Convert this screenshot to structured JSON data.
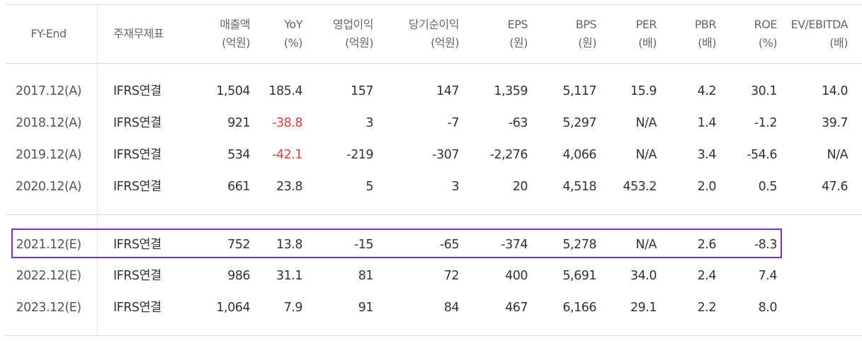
{
  "headers": [
    {
      "l1": "FY-End",
      "l2": ""
    },
    {
      "l1": "주재무제표",
      "l2": ""
    },
    {
      "l1": "매출액",
      "l2": "(억원)"
    },
    {
      "l1": "YoY",
      "l2": "(%)"
    },
    {
      "l1": "영업이익",
      "l2": "(억원)"
    },
    {
      "l1": "당기순이익",
      "l2": "(억원)"
    },
    {
      "l1": "EPS",
      "l2": "(원)"
    },
    {
      "l1": "BPS",
      "l2": "(원)"
    },
    {
      "l1": "PER",
      "l2": "(배)"
    },
    {
      "l1": "PBR",
      "l2": "(배)"
    },
    {
      "l1": "ROE",
      "l2": "(%)"
    },
    {
      "l1": "EV/EBITDA",
      "l2": "(배)"
    }
  ],
  "rows": [
    {
      "fy": "2017.12(A)",
      "std": "IFRS연결",
      "v": [
        "1,504",
        "185.4",
        "157",
        "147",
        "1,359",
        "5,117",
        "15.9",
        "4.2",
        "30.1",
        "14.0"
      ]
    },
    {
      "fy": "2018.12(A)",
      "std": "IFRS연결",
      "v": [
        "921",
        "-38.8",
        "3",
        "-7",
        "-63",
        "5,297",
        "N/A",
        "1.4",
        "-1.2",
        "39.7"
      ]
    },
    {
      "fy": "2019.12(A)",
      "std": "IFRS연결",
      "v": [
        "534",
        "-42.1",
        "-219",
        "-307",
        "-2,276",
        "4,066",
        "N/A",
        "3.4",
        "-54.6",
        "N/A"
      ]
    },
    {
      "fy": "2020.12(A)",
      "std": "IFRS연결",
      "v": [
        "661",
        "23.8",
        "5",
        "3",
        "20",
        "4,518",
        "453.2",
        "2.0",
        "0.5",
        "47.6"
      ]
    },
    {
      "fy": "2021.12(E)",
      "std": "IFRS연결",
      "v": [
        "752",
        "13.8",
        "-15",
        "-65",
        "-374",
        "5,278",
        "N/A",
        "2.6",
        "-8.3",
        ""
      ]
    },
    {
      "fy": "2022.12(E)",
      "std": "IFRS연결",
      "v": [
        "986",
        "31.1",
        "81",
        "72",
        "400",
        "5,691",
        "34.0",
        "2.4",
        "7.4",
        ""
      ]
    },
    {
      "fy": "2023.12(E)",
      "std": "IFRS연결",
      "v": [
        "1,064",
        "7.9",
        "91",
        "84",
        "467",
        "6,166",
        "29.1",
        "2.2",
        "8.0",
        ""
      ]
    }
  ],
  "negative_highlight_color": "#e03c3c",
  "selection_box_color": "#7a2bd6"
}
